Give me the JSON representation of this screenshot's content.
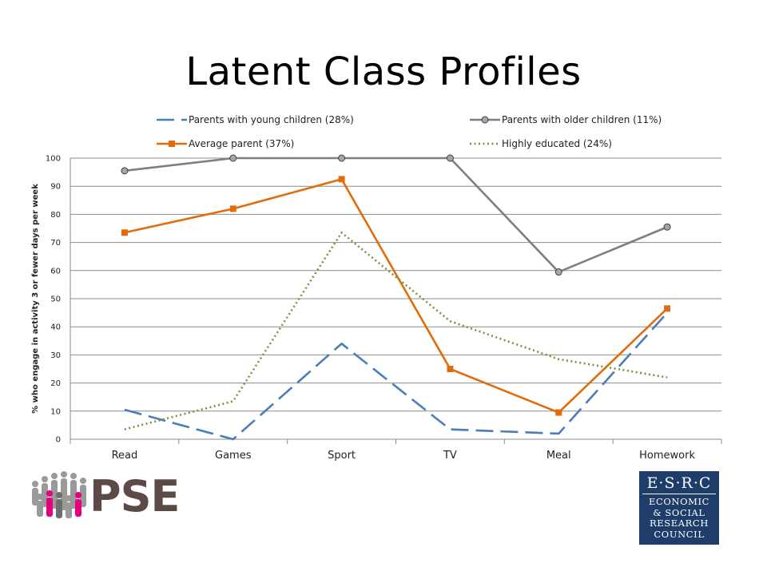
{
  "slide": {
    "title": "Latent Class Profiles"
  },
  "chart_data": {
    "type": "line",
    "title": "",
    "xlabel": "",
    "ylabel": "% who engage in activity 3 or fewer days per week",
    "categories": [
      "Read",
      "Games",
      "Sport",
      "TV",
      "Meal",
      "Homework"
    ],
    "ylim": [
      0,
      100
    ],
    "yticks": [
      0,
      10,
      20,
      30,
      40,
      50,
      60,
      70,
      80,
      90,
      100
    ],
    "grid": true,
    "legend_position": "top",
    "series": [
      {
        "name": "Parents with young children (28%)",
        "values": [
          10.5,
          0,
          34,
          3.5,
          2,
          45
        ],
        "color": "#4a7ebb",
        "style": "long-dash",
        "marker": "none"
      },
      {
        "name": "Parents with older children (11%)",
        "values": [
          95.5,
          100,
          100,
          100,
          59.5,
          75.5
        ],
        "color": "#7f7f7f",
        "style": "solid",
        "marker": "circle"
      },
      {
        "name": "Average parent (37%)",
        "values": [
          73.5,
          82,
          92.5,
          25,
          9.5,
          46.5
        ],
        "color": "#e36c0a",
        "style": "solid",
        "marker": "square"
      },
      {
        "name": "Highly educated (24%)",
        "values": [
          3.5,
          13.5,
          73.5,
          42,
          28.5,
          22
        ],
        "color": "#77933c",
        "style": "dotted",
        "marker": "none"
      }
    ]
  },
  "logos": {
    "pse": {
      "text": "PSE",
      "icon": "crowd-of-people-icon",
      "color": "#5c4a47",
      "accent": "#e6007e"
    },
    "esrc": {
      "top": "E·S·R·C",
      "lines": [
        "ECONOMIC",
        "& SOCIAL",
        "RESEARCH",
        "COUNCIL"
      ],
      "color": "#1f3d6b"
    }
  }
}
